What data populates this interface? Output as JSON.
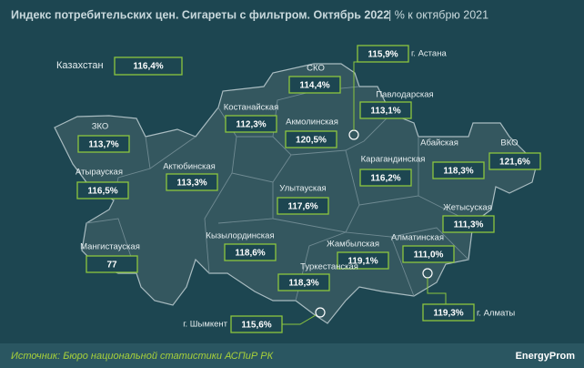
{
  "header": {
    "title": "Индекс потребительских цен. Сигареты с фильтром. Октябрь 2022",
    "subtitle": "| % к октябрю 2021"
  },
  "country": {
    "name": "Казахстан",
    "value": "116,4%"
  },
  "regions": [
    {
      "name": "СКО",
      "value": "114,4%"
    },
    {
      "name": "г. Астана",
      "value": "115,9%"
    },
    {
      "name": "Павлодарская",
      "value": "113,1%"
    },
    {
      "name": "Костанайская",
      "value": "112,3%"
    },
    {
      "name": "Акмолинская",
      "value": "120,5%"
    },
    {
      "name": "ЗКО",
      "value": "113,7%"
    },
    {
      "name": "Абайская",
      "value": "118,3%"
    },
    {
      "name": "ВКО",
      "value": "121,6%"
    },
    {
      "name": "Актюбинская",
      "value": "113,3%"
    },
    {
      "name": "Карагандинская",
      "value": "116,2%"
    },
    {
      "name": "Атырауская",
      "value": "116,5%"
    },
    {
      "name": "Улытауская",
      "value": "117,6%"
    },
    {
      "name": "Жетысуская",
      "value": "111,3%"
    },
    {
      "name": "Кызылординская",
      "value": "118,6%"
    },
    {
      "name": "Жамбылская",
      "value": "119,1%"
    },
    {
      "name": "Алматинская",
      "value": "111,0%"
    },
    {
      "name": "Мангистауская",
      "value": "77"
    },
    {
      "name": "Туркестанская",
      "value": "118,3%"
    },
    {
      "name": "г. Шымкент",
      "value": "115,6%"
    },
    {
      "name": "г. Алматы",
      "value": "119,3%"
    }
  ],
  "footer": {
    "source": "Источник: Бюро национальной статистики АСПиР РК",
    "logo": "EnergyProm"
  }
}
